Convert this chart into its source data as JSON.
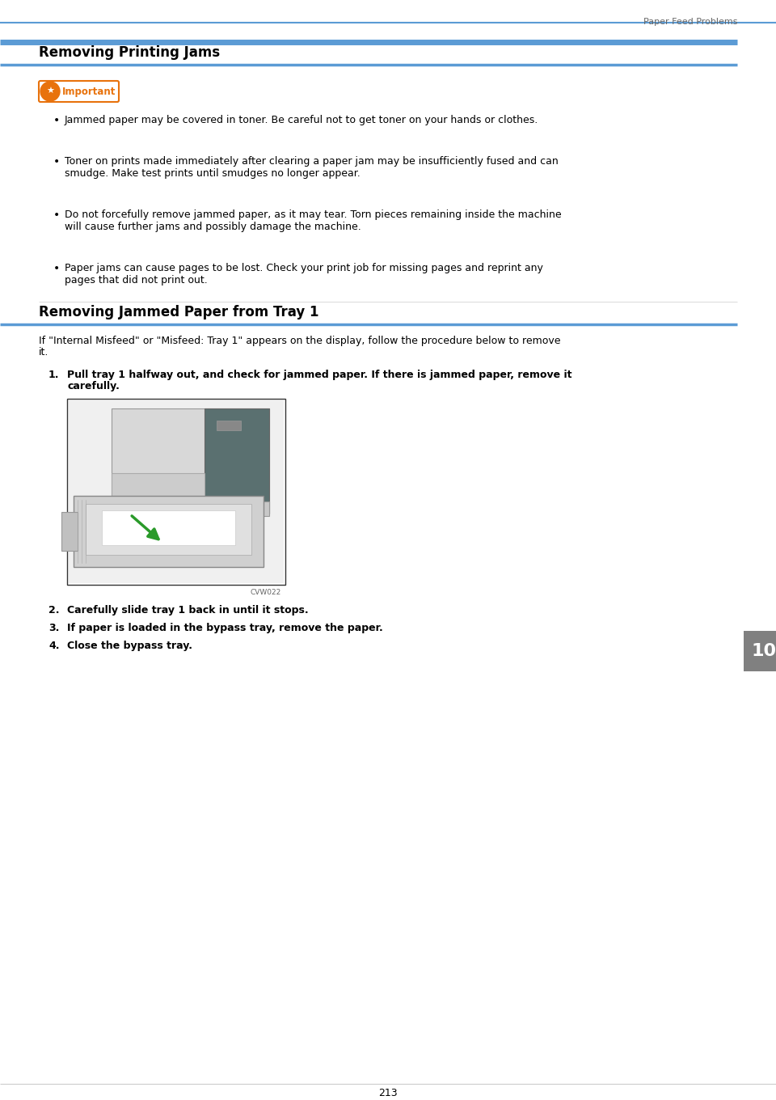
{
  "page_title": "Paper Feed Problems",
  "page_number": "213",
  "chapter_number": "10",
  "section1_title": "Removing Printing Jams",
  "important_label": "Important",
  "bullet_points": [
    "Jammed paper may be covered in toner. Be careful not to get toner on your hands or clothes.",
    "Toner on prints made immediately after clearing a paper jam may be insufficiently fused and can\nsmudge. Make test prints until smudges no longer appear.",
    "Do not forcefully remove jammed paper, as it may tear. Torn pieces remaining inside the machine\nwill cause further jams and possibly damage the machine.",
    "Paper jams can cause pages to be lost. Check your print job for missing pages and reprint any\npages that did not print out."
  ],
  "section2_title": "Removing Jammed Paper from Tray 1",
  "intro_text": "If \"Internal Misfeed\" or \"Misfeed: Tray 1\" appears on the display, follow the procedure below to remove\nit.",
  "steps": [
    "Pull tray 1 halfway out, and check for jammed paper. If there is jammed paper, remove it\ncarefully.",
    "Carefully slide tray 1 back in until it stops.",
    "If paper is loaded in the bypass tray, remove the paper.",
    "Close the bypass tray."
  ],
  "image_caption": "CVW022",
  "blue_color": "#5b9bd5",
  "orange_color": "#e8720c",
  "dark_gray": "#666666",
  "tab_gray": "#808080",
  "background": "#ffffff",
  "header_text_fontsize": 8,
  "title_fontsize": 12,
  "body_fontsize": 9,
  "step_fontsize": 9,
  "important_fontsize": 8.5
}
